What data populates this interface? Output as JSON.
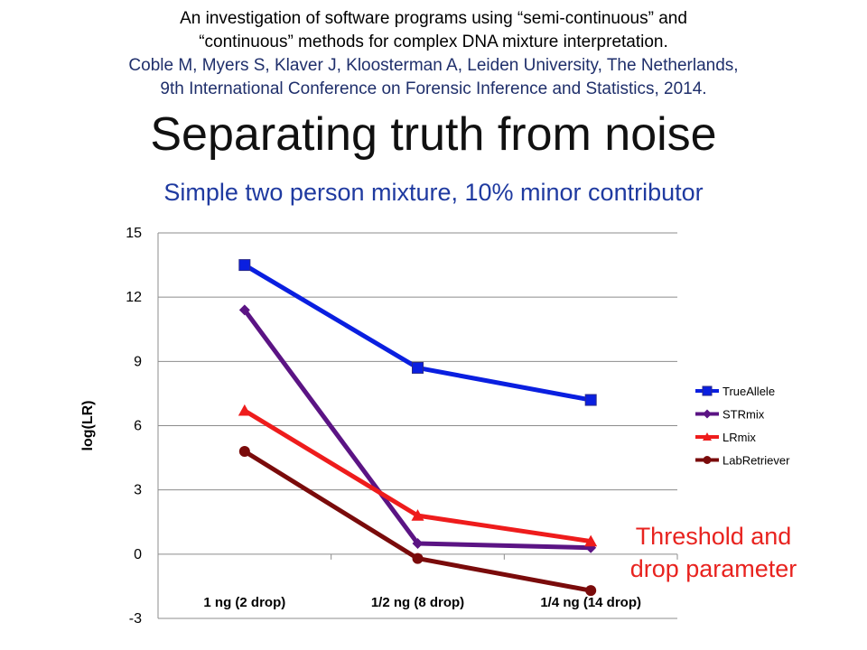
{
  "citation": {
    "line1": "An investigation of software programs using “semi-continuous” and",
    "line2": "“continuous” methods for complex DNA mixture interpretation.",
    "line3": "Coble M, Myers S, Klaver J, Kloosterman A, Leiden University, The Netherlands,",
    "line4": "9th International Conference on Forensic Inference and Statistics, 2014."
  },
  "title": "Separating truth from noise",
  "subtitle": "Simple two person mixture, 10% minor contributor",
  "annotation": {
    "line1": "Threshold and",
    "line2": "drop parameter"
  },
  "chart_data": {
    "type": "line",
    "categories": [
      "1 ng (2 drop)",
      "1/2 ng (8 drop)",
      "1/4 ng (14 drop)"
    ],
    "ylabel": "log(LR)",
    "xlabel": "",
    "ylim": [
      -3,
      15
    ],
    "yticks": [
      15,
      12,
      9,
      6,
      3,
      0,
      -3
    ],
    "grid": true,
    "legend_position": "right",
    "series": [
      {
        "name": "TrueAllele",
        "color": "#0a1fe0",
        "marker": "square",
        "values": [
          13.5,
          8.7,
          7.2
        ]
      },
      {
        "name": "STRmix",
        "color": "#5b1484",
        "marker": "diamond",
        "values": [
          11.4,
          0.5,
          0.3
        ]
      },
      {
        "name": "LRmix",
        "color": "#ee1c1c",
        "marker": "triangle",
        "values": [
          6.7,
          1.8,
          0.6
        ]
      },
      {
        "name": "LabRetriever",
        "color": "#7a0b0b",
        "marker": "circle",
        "values": [
          4.8,
          -0.2,
          -1.7
        ]
      }
    ]
  }
}
